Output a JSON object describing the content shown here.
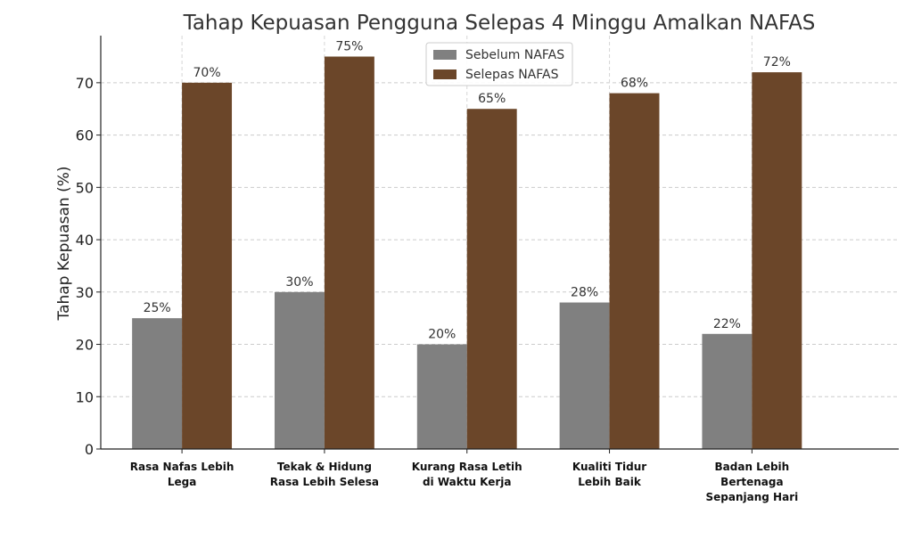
{
  "chart_data": {
    "type": "bar",
    "title": "Tahap Kepuasan Pengguna Selepas 4 Minggu Amalkan NAFAS",
    "xlabel": "",
    "ylabel": "Tahap Kepuasan (%)",
    "ylim": [
      0,
      79
    ],
    "yticks": [
      0,
      10,
      20,
      30,
      40,
      50,
      60,
      70
    ],
    "grid": true,
    "legend_position": "top-center",
    "categories": [
      [
        "Rasa Nafas Lebih",
        "Lega"
      ],
      [
        "Tekak & Hidung",
        "Rasa Lebih Selesa"
      ],
      [
        "Kurang Rasa Letih",
        "di Waktu Kerja"
      ],
      [
        "Kualiti Tidur",
        "Lebih Baik"
      ],
      [
        "Badan Lebih",
        "Bertenaga",
        "Sepanjang Hari"
      ]
    ],
    "series": [
      {
        "name": "Sebelum NAFAS",
        "color": "#808080",
        "values": [
          25,
          30,
          20,
          28,
          22
        ],
        "labels": [
          "25%",
          "30%",
          "20%",
          "28%",
          "22%"
        ]
      },
      {
        "name": "Selepas NAFAS",
        "color": "#6b4629",
        "values": [
          70,
          75,
          65,
          68,
          72
        ],
        "labels": [
          "70%",
          "75%",
          "65%",
          "68%",
          "72%"
        ]
      }
    ]
  }
}
